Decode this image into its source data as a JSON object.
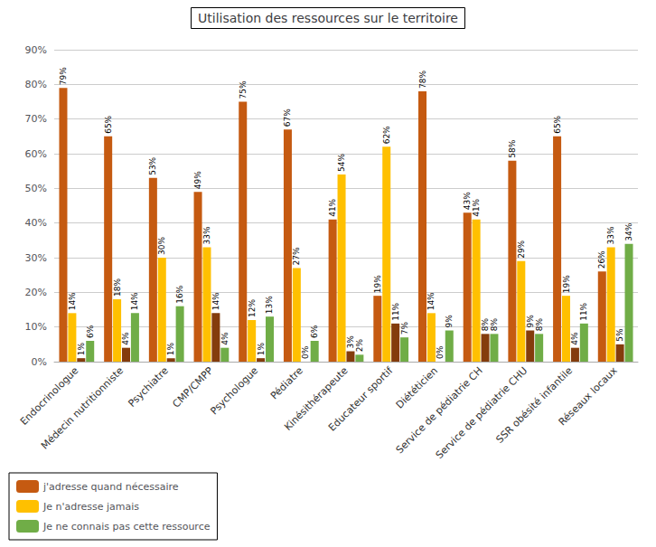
{
  "chart_data": {
    "type": "bar",
    "title": "Utilisation des ressources sur le territoire",
    "categories": [
      "Endocrinologue",
      "Médecin nutritionniste",
      "Psychiatre",
      "CMP/CMPP",
      "Psychologue",
      "Pédiatre",
      "Kinésithérapeute",
      "Educateur sportif",
      "Diététicien",
      "Service de pédiatrie CH",
      "Service de pédiatrie CHU",
      "SSR obésité infantile",
      "Réseaux locaux"
    ],
    "series": [
      {
        "name": "j'adresse quand nécessaire",
        "color": "#C55A11",
        "values": [
          79,
          65,
          53,
          49,
          75,
          67,
          41,
          19,
          78,
          43,
          58,
          65,
          26
        ],
        "value_labels": [
          "79%",
          "65%",
          "53%",
          "49%",
          "75%",
          "67%",
          "41%",
          "19%",
          "78%",
          "43%",
          "58%",
          "65%",
          "26%"
        ]
      },
      {
        "name": "Je n'adresse jamais",
        "color": "#FFC000",
        "values": [
          14,
          18,
          30,
          33,
          12,
          27,
          54,
          62,
          14,
          41,
          29,
          19,
          33
        ],
        "value_labels": [
          "14%",
          "18%",
          "30%",
          "33%",
          "12%",
          "27%",
          "54%",
          "62%",
          "14%",
          "41%",
          "29%",
          "19%",
          "33%"
        ]
      },
      {
        "color": "#843C0C",
        "values": [
          1,
          4,
          1,
          14,
          1,
          0,
          3,
          11,
          0,
          8,
          9,
          4,
          5
        ],
        "value_labels": [
          "1%",
          "4%",
          "1%",
          "14%",
          "1%",
          "0%",
          "3%",
          "11%",
          "0%",
          "8%",
          "9%",
          "4%",
          "5%"
        ]
      },
      {
        "name": "Je ne connais pas cette ressource",
        "color": "#70AD47",
        "values": [
          6,
          14,
          16,
          4,
          13,
          6,
          2,
          7,
          9,
          8,
          8,
          11,
          34
        ],
        "value_labels": [
          "6%",
          "14%",
          "16%",
          "4%",
          "13%",
          "6%",
          "2%",
          "7%",
          "9%",
          "8%",
          "8%",
          "11%",
          "34%"
        ]
      }
    ],
    "ylim": [
      0,
      90
    ],
    "yticks": [
      {
        "value": 0,
        "label": "0%"
      },
      {
        "value": 10,
        "label": "10%"
      },
      {
        "value": 20,
        "label": "20%"
      },
      {
        "value": 30,
        "label": "30%"
      },
      {
        "value": 40,
        "label": "40%"
      },
      {
        "value": 50,
        "label": "50%"
      },
      {
        "value": 60,
        "label": "60%"
      },
      {
        "value": 70,
        "label": "70%"
      },
      {
        "value": 80,
        "label": "80%"
      },
      {
        "value": 90,
        "label": "90%"
      }
    ],
    "grid": true,
    "legend": "lower left",
    "data_labels": true
  }
}
